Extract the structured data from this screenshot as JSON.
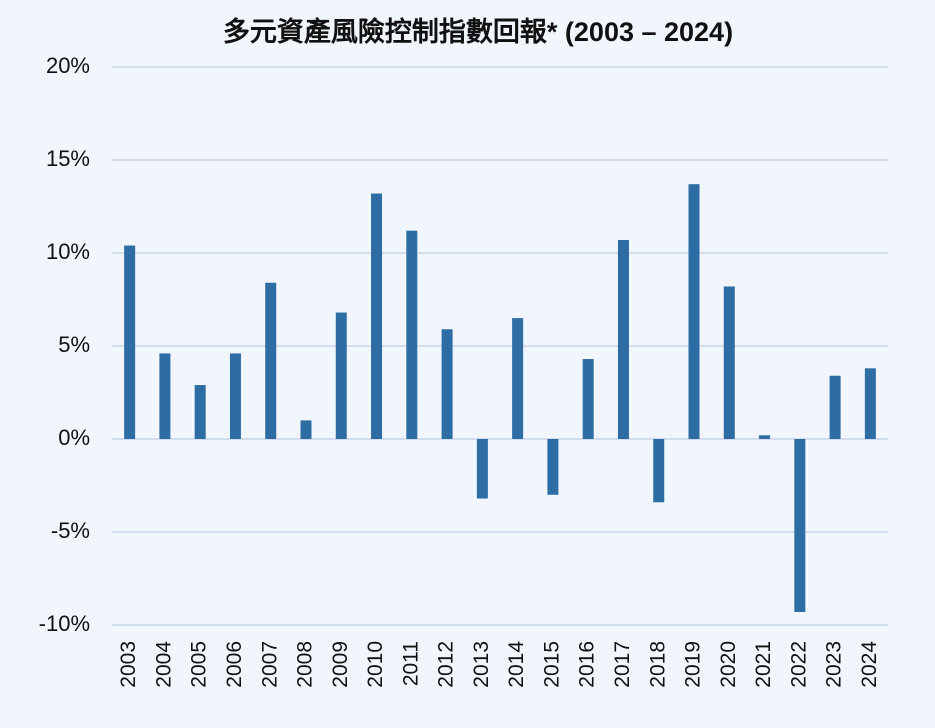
{
  "chart_data": {
    "type": "bar",
    "title": "多元資產風險控制指數回報* (2003 – 2024)",
    "categories": [
      "2003",
      "2004",
      "2005",
      "2006",
      "2007",
      "2008",
      "2009",
      "2010",
      "2011",
      "2012",
      "2013",
      "2014",
      "2015",
      "2016",
      "2017",
      "2018",
      "2019",
      "2020",
      "2021",
      "2022",
      "2023",
      "2024"
    ],
    "values": [
      10.4,
      4.6,
      2.9,
      4.6,
      8.4,
      1.0,
      6.8,
      13.2,
      11.2,
      5.9,
      -3.2,
      6.5,
      -3.0,
      4.3,
      10.7,
      -3.4,
      13.7,
      8.2,
      0.2,
      -9.3,
      3.4,
      3.8
    ],
    "color": "#2e6da4",
    "ylim": [
      -10,
      20
    ],
    "yticks": [
      {
        "value": -10,
        "label": "-10%"
      },
      {
        "value": -5,
        "label": "-5%"
      },
      {
        "value": 0,
        "label": "0%"
      },
      {
        "value": 5,
        "label": "5%"
      },
      {
        "value": 10,
        "label": "10%"
      },
      {
        "value": 15,
        "label": "15%"
      },
      {
        "value": 20,
        "label": "20%"
      }
    ],
    "grid": true
  }
}
